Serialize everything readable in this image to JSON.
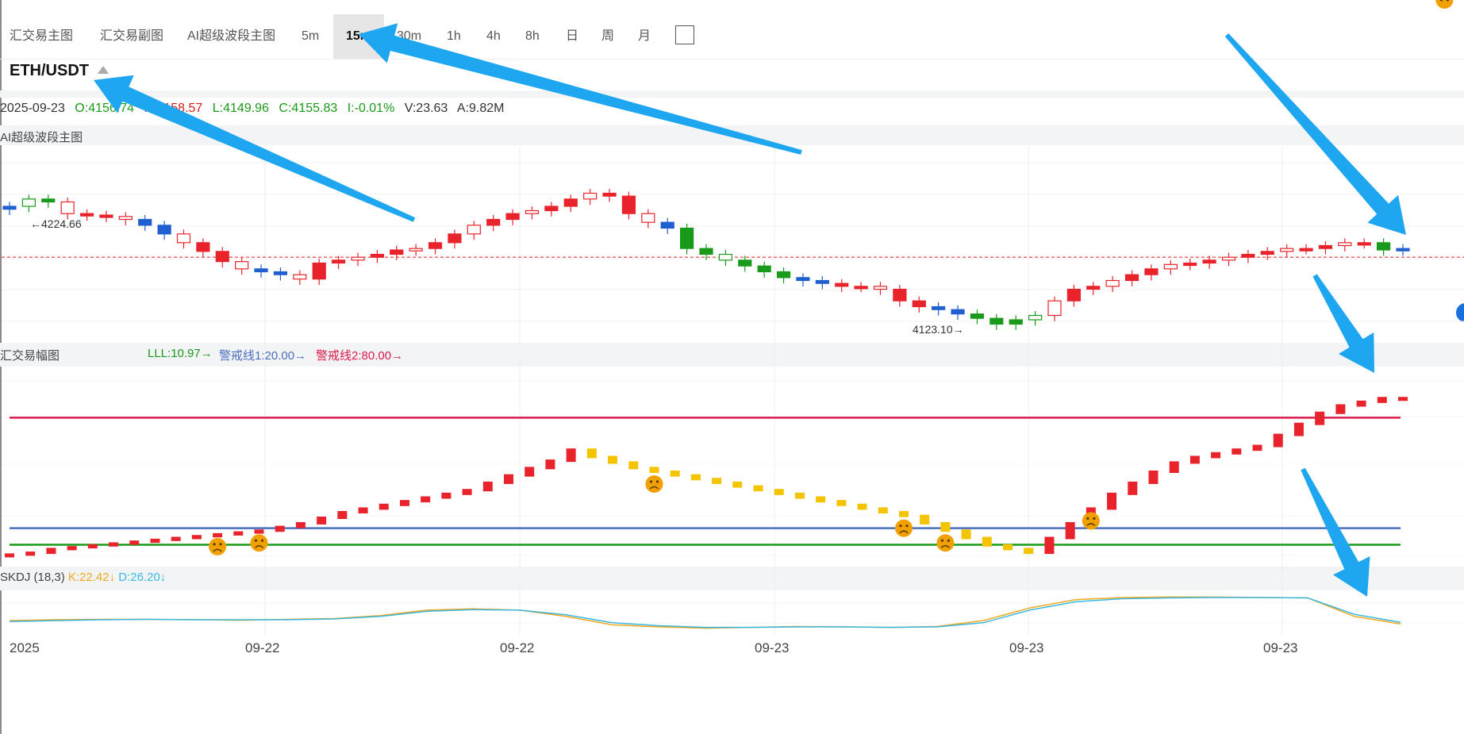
{
  "toolbar": {
    "items": [
      "汇交易主图",
      "汇交易副图",
      "AI超级波段主图",
      "5m",
      "15m",
      "30m",
      "1h",
      "4h",
      "8h",
      "日",
      "周",
      "月"
    ],
    "active": "15m"
  },
  "symbol": "ETH/USDT",
  "ohlc": {
    "date": "2025-09-23",
    "open": "O:4156.74",
    "high": "H:4158.57",
    "low": "L:4149.96",
    "close": "C:4155.83",
    "change": "I:-0.01%",
    "volume": "V:23.63",
    "amount": "A:9.82M"
  },
  "main_panel": {
    "title": "AI超级波段主图",
    "high_marker": "←4224.66",
    "low_marker": "4123.10→"
  },
  "sub_panel": {
    "title": "汇交易幅图",
    "legend": [
      "LLL:10.97→",
      "警戒线1:20.00→",
      "警戒线2:80.00→"
    ]
  },
  "kdj_panel": {
    "title": "SKDJ (18,3)",
    "k": "K:22.42↓",
    "d": "D:26.20↓"
  },
  "x_axis": [
    "2025",
    "09-22",
    "09-22",
    "09-23",
    "09-23",
    "09-23"
  ],
  "colors": {
    "up": "#e8232b",
    "down": "#1a9a1a",
    "blue": "#1f5fd0",
    "yellow": "#f5c400",
    "k_line": "#f0a820",
    "d_line": "#3bb8e0",
    "alert2": "#d81b4a",
    "alert1": "#4a6fc0",
    "lll": "#1a9a1a",
    "arrow": "#1fa6f0",
    "face": "#f0a000"
  },
  "chart_data": [
    {
      "type": "candlestick",
      "series_up_down": [
        "B",
        "G",
        "G",
        "R",
        "R",
        "R",
        "R",
        "B",
        "B",
        "R",
        "R",
        "R",
        "R",
        "B",
        "B",
        "R",
        "R",
        "R",
        "R",
        "R",
        "R",
        "R",
        "R",
        "R",
        "R",
        "R",
        "R",
        "R",
        "R",
        "R",
        "R",
        "R",
        "R",
        "R",
        "B",
        "G",
        "G",
        "G",
        "G",
        "G",
        "G",
        "B",
        "B",
        "R",
        "R",
        "R",
        "R",
        "R",
        "B",
        "B",
        "G",
        "G",
        "G",
        "G",
        "R",
        "R",
        "R",
        "R",
        "R",
        "R",
        "R",
        "R",
        "R",
        "R",
        "R",
        "R",
        "R",
        "R",
        "R",
        "R",
        "R",
        "G",
        "B"
      ],
      "close_approx": [
        4205,
        4210,
        4208,
        4200,
        4199,
        4198,
        4196,
        4192,
        4186,
        4180,
        4174,
        4167,
        4162,
        4160,
        4158,
        4155,
        4166,
        4168,
        4170,
        4172,
        4175,
        4176,
        4180,
        4186,
        4192,
        4196,
        4200,
        4202,
        4205,
        4210,
        4214,
        4212,
        4200,
        4194,
        4190,
        4176,
        4172,
        4168,
        4164,
        4160,
        4156,
        4154,
        4152,
        4150,
        4150,
        4148,
        4140,
        4136,
        4134,
        4131,
        4128,
        4124,
        4127,
        4130,
        4140,
        4148,
        4150,
        4154,
        4158,
        4162,
        4165,
        4166,
        4168,
        4170,
        4172,
        4174,
        4176,
        4176,
        4178,
        4180,
        4180,
        4175,
        4176
      ],
      "annotations": [
        "←4224.66",
        "4123.10→"
      ]
    },
    {
      "type": "line",
      "series": [
        {
          "name": "警戒线2",
          "values": [
            80,
            80
          ]
        },
        {
          "name": "警戒线1",
          "values": [
            20,
            20
          ]
        },
        {
          "name": "LLL",
          "values": [
            10.97,
            10.97
          ]
        }
      ],
      "bars": [
        5,
        6,
        8,
        9,
        10,
        11,
        12,
        13,
        14,
        15,
        16,
        17,
        18,
        20,
        22,
        25,
        28,
        30,
        32,
        34,
        36,
        38,
        40,
        44,
        48,
        52,
        56,
        62,
        58,
        55,
        52,
        50,
        48,
        46,
        44,
        42,
        40,
        38,
        36,
        34,
        32,
        30,
        28,
        26,
        22,
        18,
        14,
        10,
        8,
        6,
        14,
        22,
        30,
        38,
        44,
        50,
        55,
        58,
        60,
        62,
        64,
        70,
        76,
        82,
        86,
        88,
        90,
        90
      ],
      "face_markers": [
        10,
        12,
        31,
        43,
        45,
        52,
        69
      ]
    },
    {
      "type": "line",
      "series": [
        {
          "name": "K",
          "values": [
            30,
            32,
            33,
            33,
            32,
            31,
            33,
            35,
            42,
            55,
            58,
            55,
            40,
            20,
            15,
            12,
            14,
            16,
            15,
            14,
            16,
            30,
            60,
            80,
            85,
            86,
            86,
            85,
            84,
            40,
            22
          ]
        },
        {
          "name": "D",
          "values": [
            28,
            30,
            32,
            33,
            32,
            32,
            32,
            34,
            40,
            52,
            56,
            55,
            44,
            25,
            18,
            14,
            14,
            15,
            15,
            14,
            15,
            25,
            55,
            75,
            82,
            84,
            85,
            85,
            84,
            45,
            26
          ]
        }
      ]
    }
  ]
}
